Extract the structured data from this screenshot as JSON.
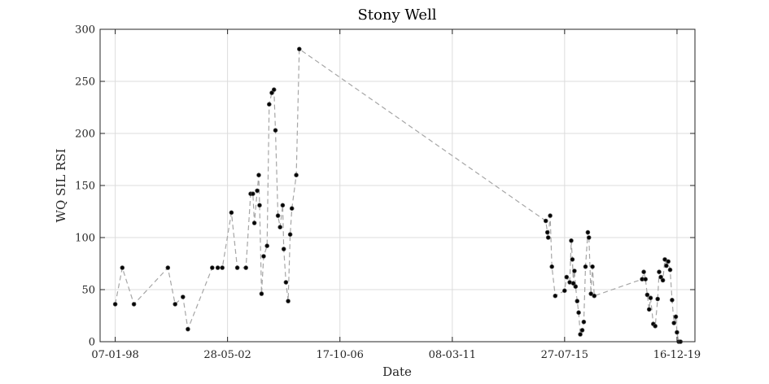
{
  "chart_data": {
    "type": "scatter",
    "title": "Stony Well",
    "xlabel": "Date",
    "ylabel": "WQ SIL RSI",
    "x_is_date": true,
    "xlim": [
      "1997-06-05",
      "2020-08-28"
    ],
    "ylim": [
      0,
      300
    ],
    "y_ticks": [
      0,
      50,
      100,
      150,
      200,
      250,
      300
    ],
    "x_ticks": [
      {
        "date": "1998-01-07",
        "label": "07-01-98"
      },
      {
        "date": "2002-05-28",
        "label": "28-05-02"
      },
      {
        "date": "2006-10-17",
        "label": "17-10-06"
      },
      {
        "date": "2011-03-08",
        "label": "08-03-11"
      },
      {
        "date": "2015-07-27",
        "label": "27-07-15"
      },
      {
        "date": "2019-12-16",
        "label": "16-12-19"
      }
    ],
    "grid": true,
    "marker": "filled-circle",
    "line_style": "dashed",
    "colors": {
      "line": "#a6a6a6",
      "marker": "#000000",
      "grid": "#dcdcdc",
      "axis": "#262626"
    },
    "series": [
      {
        "x": [
          "1998-01-07",
          "1998-04-18",
          "1998-10-01",
          "2000-01-28",
          "2000-05-10",
          "2000-08-30",
          "2000-11-08",
          "2001-10-22",
          "2002-01-08",
          "2002-03-14",
          "2002-07-23",
          "2002-10-14",
          "2003-02-14",
          "2003-04-22",
          "2003-05-25",
          "2003-06-15",
          "2003-07-25",
          "2003-08-17",
          "2003-08-28",
          "2003-09-25",
          "2003-10-25",
          "2003-12-13",
          "2004-01-12",
          "2004-02-18",
          "2004-03-20",
          "2004-04-10",
          "2004-05-16",
          "2004-06-15",
          "2004-07-23",
          "2004-08-07",
          "2004-09-07",
          "2004-10-08",
          "2004-11-07",
          "2004-12-01",
          "2005-02-01",
          "2005-03-17",
          "2014-10-31",
          "2014-11-24",
          "2014-12-05",
          "2015-01-02",
          "2015-01-27",
          "2015-03-15",
          "2015-07-27",
          "2015-08-24",
          "2015-10-08",
          "2015-10-30",
          "2015-11-15",
          "2015-11-29",
          "2015-12-14",
          "2015-12-30",
          "2016-01-22",
          "2016-02-12",
          "2016-03-06",
          "2016-04-03",
          "2016-04-25",
          "2016-05-20",
          "2016-06-22",
          "2016-07-07",
          "2016-08-06",
          "2016-08-28",
          "2016-09-22",
          "2018-08-06",
          "2018-08-29",
          "2018-09-22",
          "2018-10-18",
          "2018-11-13",
          "2018-12-04",
          "2019-01-12",
          "2019-02-08",
          "2019-03-15",
          "2019-04-05",
          "2019-04-30",
          "2019-05-29",
          "2019-06-25",
          "2019-07-18",
          "2019-08-13",
          "2019-09-09",
          "2019-10-07",
          "2019-11-02",
          "2019-11-29",
          "2019-12-16",
          "2020-01-10",
          "2020-02-03"
        ],
        "y": [
          36,
          71,
          36,
          71,
          36,
          43,
          12,
          71,
          71,
          71,
          124,
          71,
          71,
          142,
          142,
          114,
          145,
          160,
          131,
          46,
          82,
          92,
          228,
          239,
          242,
          203,
          121,
          110,
          131,
          89,
          57,
          39,
          103,
          128,
          160,
          281,
          116,
          105,
          100,
          121,
          72,
          44,
          49,
          62,
          57,
          97,
          79,
          56,
          68,
          53,
          39,
          28,
          7,
          11,
          19,
          72,
          105,
          100,
          46,
          72,
          44,
          60,
          67,
          60,
          45,
          31,
          42,
          17,
          15,
          41,
          67,
          62,
          59,
          79,
          73,
          77,
          69,
          40,
          18,
          24,
          9,
          0,
          0
        ]
      }
    ]
  }
}
